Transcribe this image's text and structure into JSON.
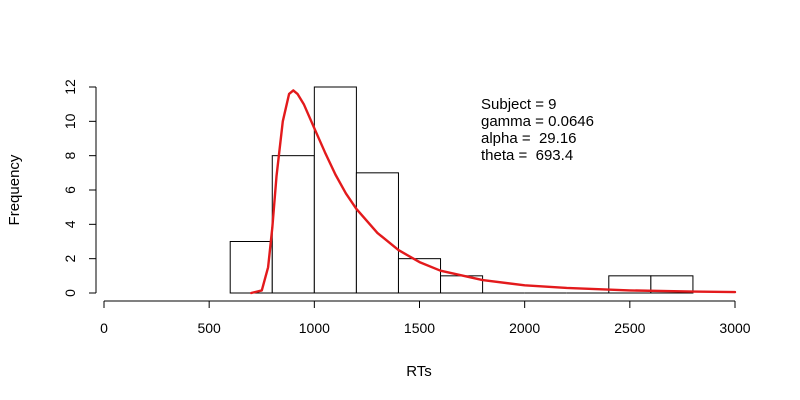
{
  "chart_data": {
    "type": "bar",
    "subtype": "histogram with fitted density curve",
    "xlabel": "RTs",
    "ylabel": "Frequency",
    "xlim": [
      0,
      3000
    ],
    "ylim": [
      0,
      12
    ],
    "x_ticks": [
      0,
      500,
      1000,
      1500,
      2000,
      2500,
      3000
    ],
    "x_tick_labels": [
      "0",
      "500",
      "1000",
      "1500",
      "2000",
      "2500",
      "3000"
    ],
    "y_ticks": [
      0,
      2,
      4,
      6,
      8,
      10,
      12
    ],
    "y_tick_labels": [
      "0",
      "2",
      "4",
      "6",
      "8",
      "10",
      "12"
    ],
    "bins": [
      {
        "start": 600,
        "end": 800,
        "count": 3
      },
      {
        "start": 800,
        "end": 1000,
        "count": 8
      },
      {
        "start": 1000,
        "end": 1200,
        "count": 12
      },
      {
        "start": 1200,
        "end": 1400,
        "count": 7
      },
      {
        "start": 1400,
        "end": 1600,
        "count": 2
      },
      {
        "start": 1600,
        "end": 1800,
        "count": 1
      },
      {
        "start": 1800,
        "end": 2000,
        "count": 0
      },
      {
        "start": 2000,
        "end": 2200,
        "count": 0
      },
      {
        "start": 2200,
        "end": 2400,
        "count": 0
      },
      {
        "start": 2400,
        "end": 2600,
        "count": 1
      },
      {
        "start": 2600,
        "end": 2800,
        "count": 1
      }
    ],
    "fitted_curve": {
      "color": "#e31a1c",
      "x": [
        700,
        750,
        780,
        800,
        820,
        850,
        880,
        900,
        920,
        950,
        1000,
        1050,
        1100,
        1150,
        1200,
        1300,
        1400,
        1500,
        1600,
        1800,
        2000,
        2200,
        2500,
        2800,
        3000
      ],
      "y": [
        0.0,
        0.15,
        1.5,
        3.8,
        6.8,
        10.0,
        11.6,
        11.8,
        11.6,
        11.0,
        9.6,
        8.2,
        6.9,
        5.8,
        4.9,
        3.5,
        2.5,
        1.8,
        1.3,
        0.75,
        0.45,
        0.3,
        0.15,
        0.08,
        0.05
      ]
    },
    "annotations": [
      "Subject = 9",
      "gamma = 0.0646",
      "alpha =  29.16",
      "theta =  693.4"
    ],
    "bar_fill": "#ffffff",
    "bar_stroke": "#000000",
    "grid": false
  }
}
